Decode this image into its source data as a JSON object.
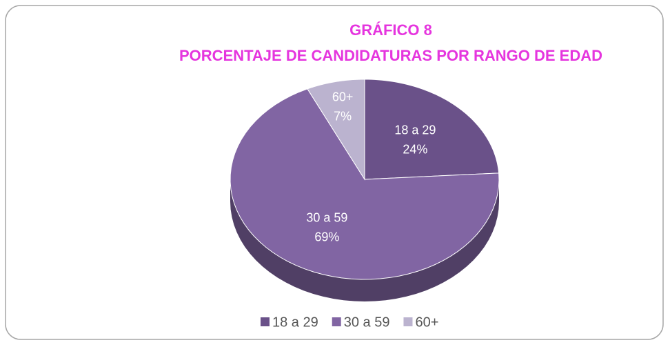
{
  "chart_data": {
    "type": "pie",
    "title": [
      "GRÁFICO 8",
      "PORCENTAJE DE CANDIDATURAS POR RANGO DE EDAD"
    ],
    "categories": [
      "18 a 29",
      "30 a 59",
      "60+"
    ],
    "values": [
      24,
      69,
      7
    ],
    "value_labels": [
      "24%",
      "69%",
      "7%"
    ],
    "colors": [
      "#6a5189",
      "#8165a3",
      "#bbb3cf"
    ],
    "legend": "bottom"
  }
}
